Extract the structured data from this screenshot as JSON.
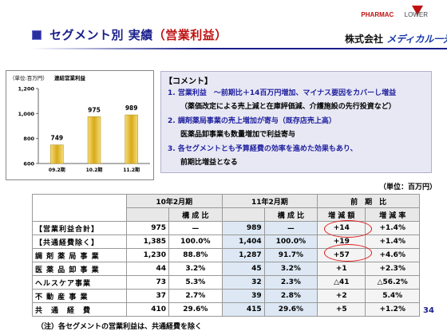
{
  "header": {
    "title": "セグメント別 実績",
    "title_highlight": "（営業利益）",
    "logo_top": "PHARMAC",
    "logo_top2": "LOWER",
    "logo_company_prefix": "株式会社",
    "logo_company_name": "メディカル一光"
  },
  "chart": {
    "unit": "（単位:百万円）",
    "title": "連結営業利益"
  },
  "chart_data": {
    "type": "bar",
    "categories": [
      "09.2期",
      "10.2期",
      "11.2期"
    ],
    "values": [
      749,
      975,
      989
    ],
    "ylim": [
      600,
      1200
    ],
    "yticks": [
      600,
      800,
      1000,
      1200
    ],
    "ytick_labels": [
      "600",
      "800",
      "1,000",
      "1,200"
    ],
    "colors": {
      "bar": "#d8aa1a",
      "bar_light": "#f5dc7a"
    }
  },
  "comment": {
    "head": "【コメント】",
    "l1": "1. 営業利益　～前期比＋14百万円増加、マイナス要因をカバーし増益",
    "l1b": "（薬価改定による売上減と在庫評価減、介護施設の先行投資など）",
    "l2": "2. 調剤薬局事業の売上増加が寄与（既存店売上高）",
    "l2b": "医薬品卸事業も数量増加で利益寄与",
    "l3": "3. 各セグメントとも予算経費の効率を進めた効果もあり、",
    "l3b": "前期比増益となる"
  },
  "unit_note": "（単位：百万円）",
  "table": {
    "h_fy10": "10年2月期",
    "h_fy11": "11年2月期",
    "h_diff": "前　期　比",
    "h_ratio": "構 成 比",
    "h_inc": "増 減 額",
    "h_rate": "増 減 率",
    "rows": [
      {
        "label": "【営業利益合計】",
        "v10": "975",
        "r10": "ー",
        "v11": "989",
        "r11": "ー",
        "diff": "+14",
        "rate": "+1.4%"
      },
      {
        "label": "【共通経費除く】",
        "v10": "1,385",
        "r10": "100.0%",
        "v11": "1,404",
        "r11": "100.0%",
        "diff": "+19",
        "rate": "+1.4%"
      },
      {
        "label": "調 剤 薬 局 事 業",
        "v10": "1,230",
        "r10": "88.8%",
        "v11": "1,287",
        "r11": "91.7%",
        "diff": "+57",
        "rate": "+4.6%"
      },
      {
        "label": "医 薬 品 卸 事 業",
        "v10": "44",
        "r10": "3.2%",
        "v11": "45",
        "r11": "3.2%",
        "diff": "+1",
        "rate": "+2.3%"
      },
      {
        "label": "ヘルスケア事業",
        "v10": "73",
        "r10": "5.3%",
        "v11": "32",
        "r11": "2.3%",
        "diff": "△41",
        "rate": "△56.2%"
      },
      {
        "label": "不 動 産 事 業",
        "v10": "37",
        "r10": "2.7%",
        "v11": "39",
        "r11": "2.8%",
        "diff": "+2",
        "rate": "5.4%"
      },
      {
        "label": "共　通　経　費",
        "v10": "410",
        "r10": "29.6%",
        "v11": "415",
        "r11": "29.6%",
        "diff": "+5",
        "rate": "+1.2%"
      }
    ]
  },
  "note": "（注）各セグメントの営業利益は、共通経費を除く",
  "page_number": "34"
}
